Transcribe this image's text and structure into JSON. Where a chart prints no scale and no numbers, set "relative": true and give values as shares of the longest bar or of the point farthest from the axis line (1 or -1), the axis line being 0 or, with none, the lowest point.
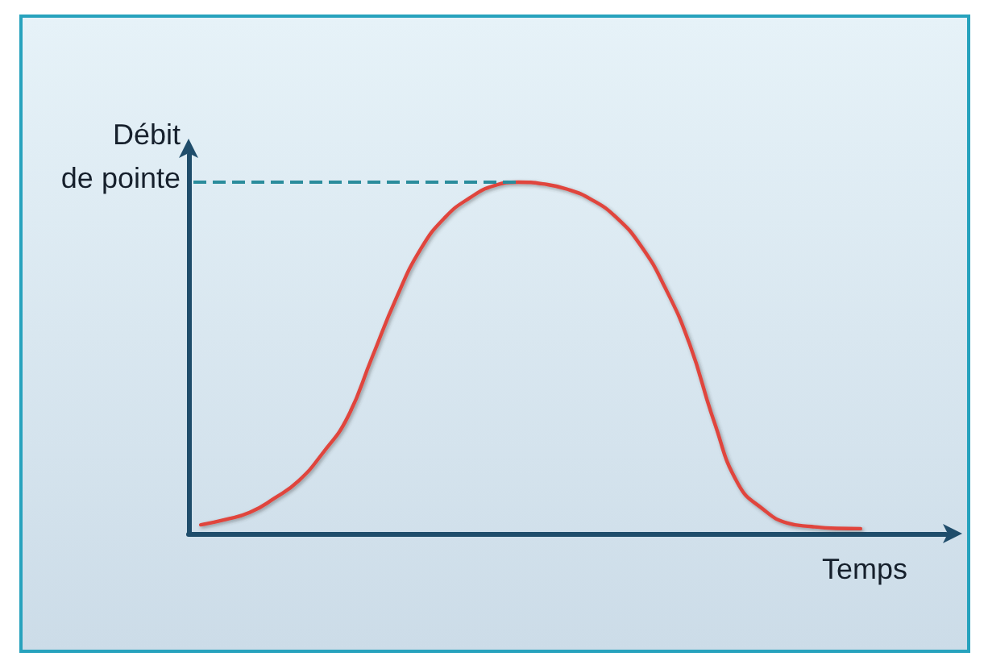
{
  "chart_data": {
    "type": "line",
    "relative": true,
    "xlabel": "Temps",
    "categories": [
      null,
      null,
      null,
      null,
      null,
      null,
      null,
      null,
      null,
      null,
      null,
      null,
      null,
      null,
      null,
      null,
      null,
      null,
      null,
      null,
      null,
      null,
      null,
      null,
      null,
      null,
      null,
      null,
      null,
      null,
      null
    ],
    "series": [
      {
        "color": "#e0453d",
        "values": [
          0.025,
          0.04,
          0.06,
          0.1,
          0.15,
          0.23,
          0.33,
          0.5,
          0.67,
          0.81,
          0.9,
          0.955,
          0.99,
          1,
          0.995,
          0.98,
          0.95,
          0.9,
          0.82,
          0.7,
          0.54,
          0.32,
          0.14,
          0.07,
          0.03,
          0.02,
          0.015,
          0.014,
          null,
          null,
          null
        ]
      }
    ],
    "ref_lines": [
      {
        "axis": "y",
        "value": 1,
        "label": "Débit de pointe",
        "color": "#2a8c9c",
        "line_style": "dashed"
      }
    ]
  }
}
